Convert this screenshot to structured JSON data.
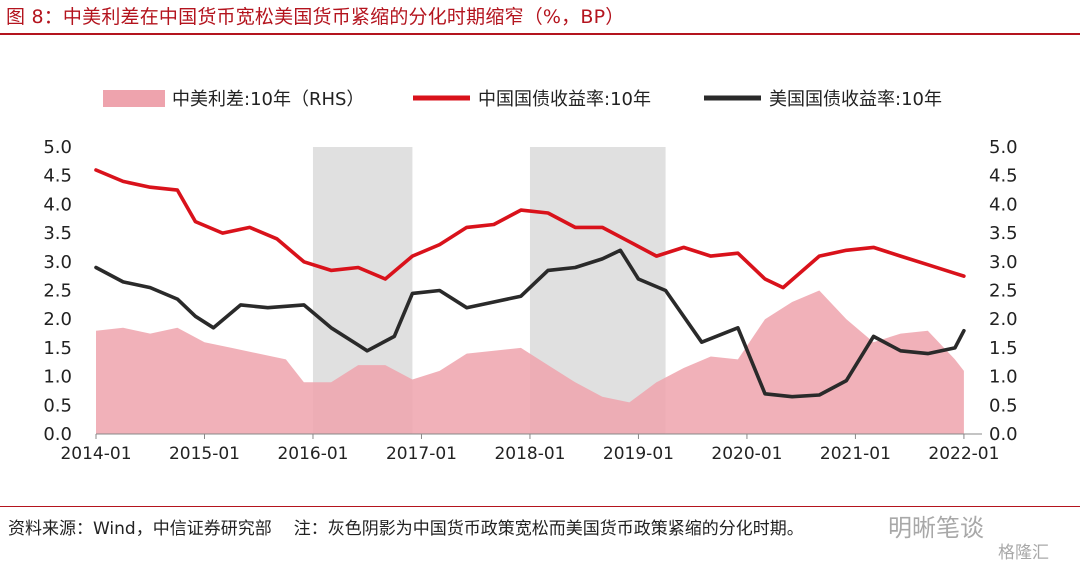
{
  "figure": {
    "title": "图 8：中美利差在中国货币宽松美国货币紧缩的分化时期缩窄（%，BP）",
    "source": "资料来源：Wind，中信证券研究部",
    "note": "注：灰色阴影为中国货币政策宽松而美国货币政策紧缩的分化时期。",
    "watermark_primary": "明晰笔谈",
    "watermark_secondary": "格隆汇"
  },
  "colors": {
    "title": "#b4141e",
    "china_line": "#d9121b",
    "us_line": "#2a2a2a",
    "spread_area": "#eea3ad",
    "shade": "#d9d9d9"
  },
  "chart_data": {
    "type": "line",
    "legend_position": "top",
    "grid": false,
    "x_ticks": [
      "2014-01",
      "2015-01",
      "2016-01",
      "2017-01",
      "2018-01",
      "2019-01",
      "2020-01",
      "2021-01",
      "2022-01"
    ],
    "xlim": [
      "2014-01",
      "2022-03"
    ],
    "ylim_left": [
      0,
      5
    ],
    "ylim_right": [
      0,
      5
    ],
    "y_ticks": [
      "0.0",
      "0.5",
      "1.0",
      "1.5",
      "2.0",
      "2.5",
      "3.0",
      "3.5",
      "4.0",
      "4.5",
      "5.0"
    ],
    "shaded_periods": [
      [
        "2016-01",
        "2016-12"
      ],
      [
        "2018-01",
        "2019-04"
      ]
    ],
    "series": [
      {
        "name": "中美利差:10年（RHS）",
        "kind": "area",
        "axis": "right",
        "points": [
          [
            "2014-01",
            1.8
          ],
          [
            "2014-04",
            1.85
          ],
          [
            "2014-07",
            1.75
          ],
          [
            "2014-10",
            1.85
          ],
          [
            "2015-01",
            1.6
          ],
          [
            "2015-04",
            1.5
          ],
          [
            "2015-07",
            1.4
          ],
          [
            "2015-10",
            1.3
          ],
          [
            "2015-12",
            0.9
          ],
          [
            "2016-03",
            0.9
          ],
          [
            "2016-06",
            1.2
          ],
          [
            "2016-09",
            1.2
          ],
          [
            "2016-12",
            0.95
          ],
          [
            "2017-03",
            1.1
          ],
          [
            "2017-06",
            1.4
          ],
          [
            "2017-09",
            1.45
          ],
          [
            "2017-12",
            1.5
          ],
          [
            "2018-03",
            1.2
          ],
          [
            "2018-06",
            0.9
          ],
          [
            "2018-09",
            0.65
          ],
          [
            "2018-12",
            0.55
          ],
          [
            "2019-03",
            0.9
          ],
          [
            "2019-06",
            1.15
          ],
          [
            "2019-09",
            1.35
          ],
          [
            "2019-12",
            1.3
          ],
          [
            "2020-03",
            2.0
          ],
          [
            "2020-06",
            2.3
          ],
          [
            "2020-09",
            2.5
          ],
          [
            "2020-12",
            2.0
          ],
          [
            "2021-03",
            1.6
          ],
          [
            "2021-06",
            1.75
          ],
          [
            "2021-09",
            1.8
          ],
          [
            "2021-12",
            1.3
          ],
          [
            "2022-01",
            1.1
          ]
        ]
      },
      {
        "name": "中国国债收益率:10年",
        "kind": "line",
        "axis": "left",
        "points": [
          [
            "2014-01",
            4.6
          ],
          [
            "2014-04",
            4.4
          ],
          [
            "2014-07",
            4.3
          ],
          [
            "2014-10",
            4.25
          ],
          [
            "2014-12",
            3.7
          ],
          [
            "2015-03",
            3.5
          ],
          [
            "2015-06",
            3.6
          ],
          [
            "2015-09",
            3.4
          ],
          [
            "2015-12",
            3.0
          ],
          [
            "2016-03",
            2.85
          ],
          [
            "2016-06",
            2.9
          ],
          [
            "2016-09",
            2.7
          ],
          [
            "2016-12",
            3.1
          ],
          [
            "2017-03",
            3.3
          ],
          [
            "2017-06",
            3.6
          ],
          [
            "2017-09",
            3.65
          ],
          [
            "2017-12",
            3.9
          ],
          [
            "2018-03",
            3.85
          ],
          [
            "2018-06",
            3.6
          ],
          [
            "2018-09",
            3.6
          ],
          [
            "2018-12",
            3.35
          ],
          [
            "2019-03",
            3.1
          ],
          [
            "2019-06",
            3.25
          ],
          [
            "2019-09",
            3.1
          ],
          [
            "2019-12",
            3.15
          ],
          [
            "2020-03",
            2.7
          ],
          [
            "2020-05",
            2.55
          ],
          [
            "2020-09",
            3.1
          ],
          [
            "2020-12",
            3.2
          ],
          [
            "2021-03",
            3.25
          ],
          [
            "2021-06",
            3.1
          ],
          [
            "2021-09",
            2.95
          ],
          [
            "2021-12",
            2.8
          ],
          [
            "2022-01",
            2.75
          ]
        ]
      },
      {
        "name": "美国国债收益率:10年",
        "kind": "line",
        "axis": "left",
        "points": [
          [
            "2014-01",
            2.9
          ],
          [
            "2014-04",
            2.65
          ],
          [
            "2014-07",
            2.55
          ],
          [
            "2014-10",
            2.35
          ],
          [
            "2014-12",
            2.05
          ],
          [
            "2015-02",
            1.85
          ],
          [
            "2015-05",
            2.25
          ],
          [
            "2015-08",
            2.2
          ],
          [
            "2015-12",
            2.25
          ],
          [
            "2016-03",
            1.85
          ],
          [
            "2016-06",
            1.55
          ],
          [
            "2016-07",
            1.45
          ],
          [
            "2016-10",
            1.7
          ],
          [
            "2016-12",
            2.45
          ],
          [
            "2017-03",
            2.5
          ],
          [
            "2017-06",
            2.2
          ],
          [
            "2017-09",
            2.3
          ],
          [
            "2017-12",
            2.4
          ],
          [
            "2018-03",
            2.85
          ],
          [
            "2018-06",
            2.9
          ],
          [
            "2018-09",
            3.05
          ],
          [
            "2018-11",
            3.2
          ],
          [
            "2019-01",
            2.7
          ],
          [
            "2019-04",
            2.5
          ],
          [
            "2019-08",
            1.6
          ],
          [
            "2019-12",
            1.85
          ],
          [
            "2020-03",
            0.7
          ],
          [
            "2020-06",
            0.65
          ],
          [
            "2020-09",
            0.68
          ],
          [
            "2020-12",
            0.93
          ],
          [
            "2021-03",
            1.7
          ],
          [
            "2021-06",
            1.45
          ],
          [
            "2021-09",
            1.4
          ],
          [
            "2021-12",
            1.5
          ],
          [
            "2022-01",
            1.8
          ]
        ]
      }
    ]
  }
}
